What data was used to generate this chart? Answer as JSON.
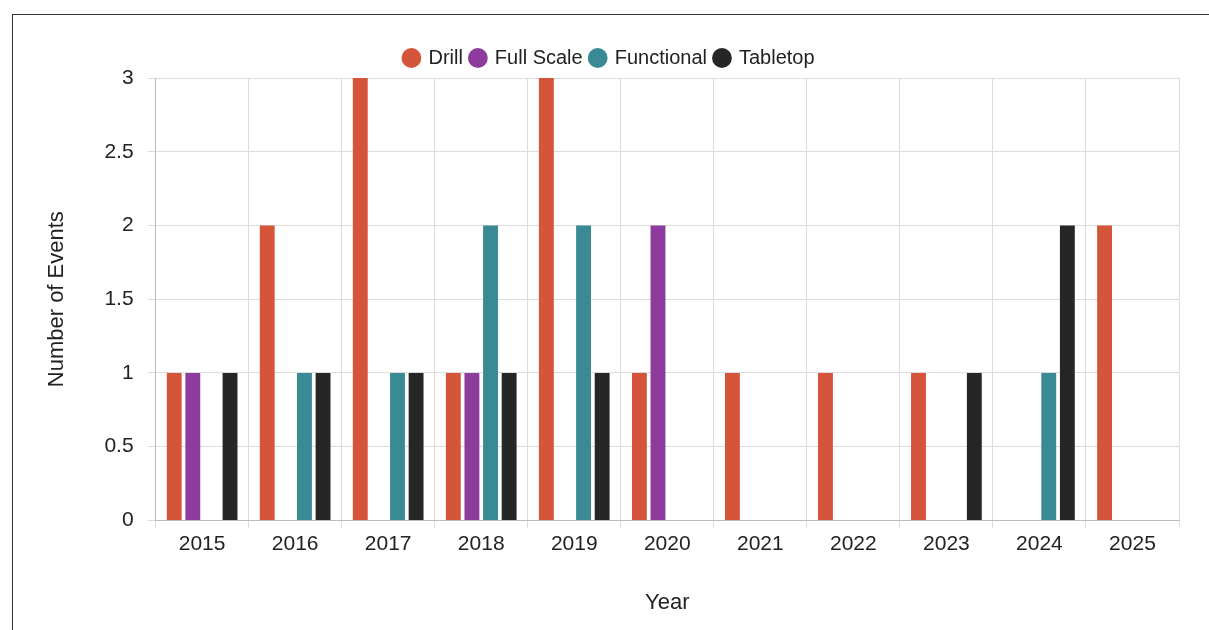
{
  "chart_data": {
    "type": "bar",
    "xlabel": "Year",
    "ylabel": "Number of Events",
    "categories": [
      "2015",
      "2016",
      "2017",
      "2018",
      "2019",
      "2020",
      "2021",
      "2022",
      "2023",
      "2024",
      "2025"
    ],
    "series": [
      {
        "name": "Drill",
        "color": "#d4553a",
        "values": [
          1,
          2,
          3,
          1,
          3,
          1,
          1,
          1,
          1,
          0,
          2
        ]
      },
      {
        "name": "Full Scale",
        "color": "#8e3b9e",
        "values": [
          1,
          0,
          0,
          1,
          0,
          2,
          0,
          0,
          0,
          0,
          0
        ]
      },
      {
        "name": "Functional",
        "color": "#3a8a96",
        "values": [
          0,
          1,
          1,
          2,
          2,
          0,
          0,
          0,
          0,
          1,
          0
        ]
      },
      {
        "name": "Tabletop",
        "color": "#262626",
        "values": [
          1,
          1,
          1,
          1,
          1,
          0,
          0,
          0,
          1,
          2,
          0
        ]
      }
    ],
    "ylim": [
      0,
      3
    ],
    "yticks": [
      0,
      0.5,
      1,
      1.5,
      2,
      2.5,
      3
    ],
    "grid": true,
    "legend": "top"
  }
}
